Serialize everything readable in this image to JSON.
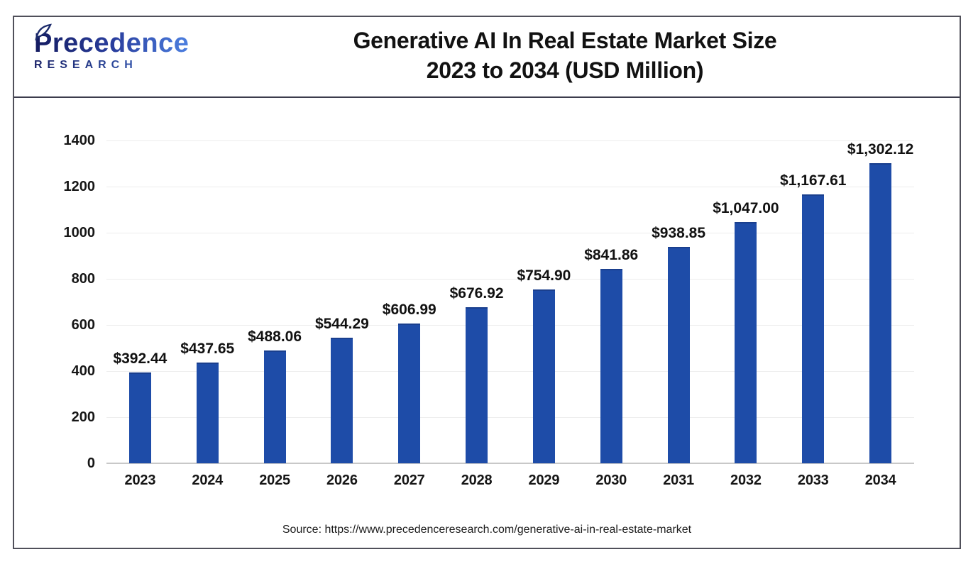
{
  "header": {
    "logo_word": "Precedence",
    "logo_subword": "RESEARCH",
    "title_line1": "Generative AI In Real Estate Market Size",
    "title_line2": "2023 to 2034 (USD Million)"
  },
  "chart_data": {
    "type": "bar",
    "title": "Generative AI In Real Estate Market Size 2023 to 2034 (USD Million)",
    "categories": [
      "2023",
      "2024",
      "2025",
      "2026",
      "2027",
      "2028",
      "2029",
      "2030",
      "2031",
      "2032",
      "2033",
      "2034"
    ],
    "values": [
      392.44,
      437.65,
      488.06,
      544.29,
      606.99,
      676.92,
      754.9,
      841.86,
      938.85,
      1047.0,
      1167.61,
      1302.12
    ],
    "bar_labels": [
      "$392.44",
      "$437.65",
      "$488.06",
      "$544.29",
      "$606.99",
      "$676.92",
      "$754.90",
      "$841.86",
      "$938.85",
      "$1,047.00",
      "$1,167.61",
      "$1,302.12"
    ],
    "xlabel": "",
    "ylabel": "",
    "ylim": [
      0,
      1400
    ],
    "yticks": [
      0,
      200,
      400,
      600,
      800,
      1000,
      1200,
      1400
    ],
    "grid": true,
    "legend_position": "none",
    "bar_color": "#1e4ca8"
  },
  "footer": {
    "source": "Source: https://www.precedenceresearch.com/generative-ai-in-real-estate-market"
  }
}
